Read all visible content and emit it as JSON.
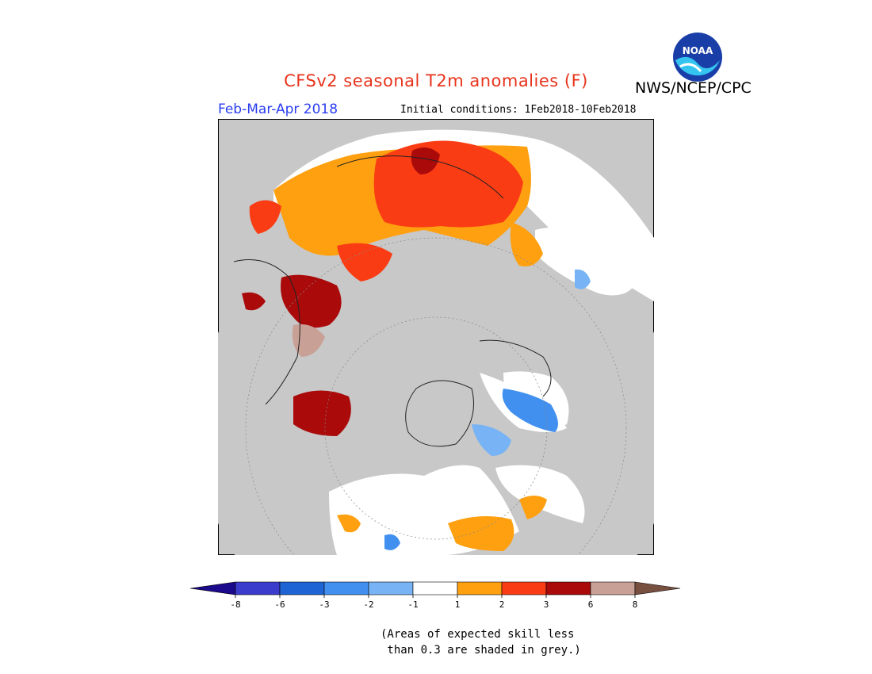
{
  "header": {
    "title": "CFSv2 seasonal T2m anomalies (F)",
    "agency": "NWS/NCEP/CPC",
    "logo_text": "NOAA",
    "season": "Feb-Mar-Apr 2018",
    "initial_conditions": "Initial conditions: 1Feb2018-10Feb2018"
  },
  "colors": {
    "title": "#e8331c",
    "season": "#2a3df0",
    "land_low_skill": "#c8c8c8",
    "neutral": "#ffffff"
  },
  "colorbar": {
    "ticks": [
      "-8",
      "-6",
      "-3",
      "-2",
      "-1",
      "1",
      "2",
      "3",
      "6",
      "8"
    ],
    "colors": [
      "#1c0a8c",
      "#3c3ccc",
      "#1e64d4",
      "#4190f0",
      "#78b4f5",
      "#ffffff",
      "#ffa010",
      "#fa3c14",
      "#aa0a0a",
      "#c8a096",
      "#785040"
    ]
  },
  "note": {
    "line1": "(Areas of expected skill less",
    "line2": " than 0.3 are shaded in grey.)"
  }
}
